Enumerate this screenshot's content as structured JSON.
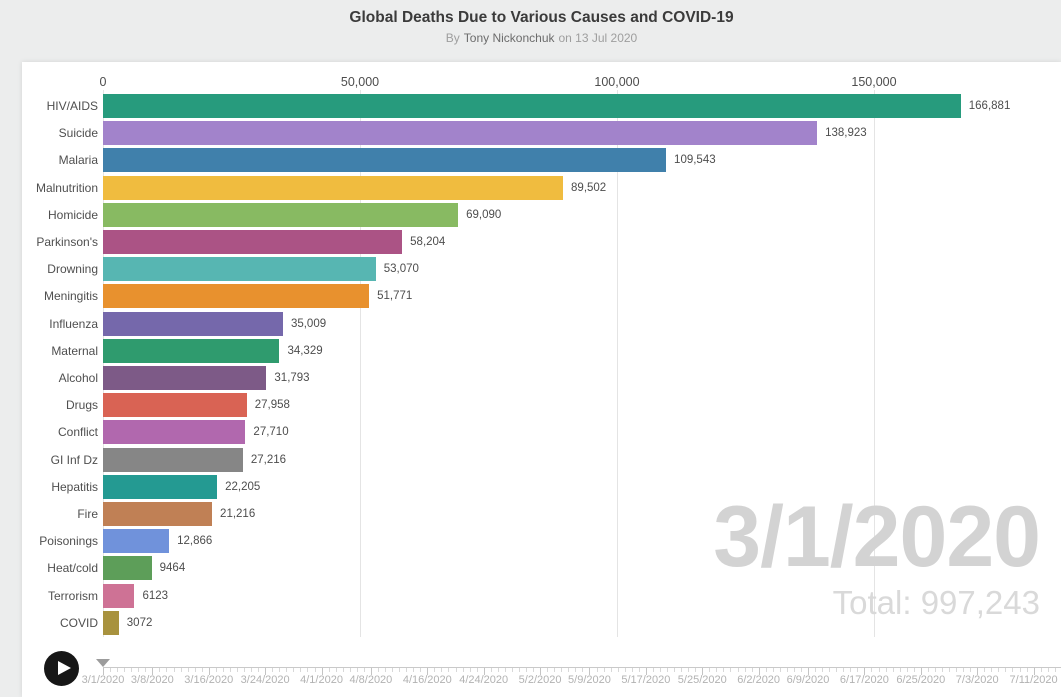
{
  "header": {
    "title": "Global Deaths Due to Various Causes and COVID-19",
    "byline_prefix": "By",
    "author": "Tony Nickonchuk",
    "byline_suffix": "on 13 Jul 2020"
  },
  "chart_data": {
    "type": "bar",
    "orientation": "horizontal",
    "title": "Global Deaths Due to Various Causes and COVID-19",
    "xlabel": "",
    "ylabel": "",
    "xlim": [
      0,
      186500
    ],
    "grid": true,
    "legend": false,
    "x_ticks": [
      0,
      50000,
      100000,
      150000
    ],
    "x_tick_labels": [
      "0",
      "50,000",
      "100,000",
      "150,000"
    ],
    "categories": [
      "HIV/AIDS",
      "Suicide",
      "Malaria",
      "Malnutrition",
      "Homicide",
      "Parkinson's",
      "Drowning",
      "Meningitis",
      "Influenza",
      "Maternal",
      "Alcohol",
      "Drugs",
      "Conflict",
      "GI Inf Dz",
      "Hepatitis",
      "Fire",
      "Poisonings",
      "Heat/cold",
      "Terrorism",
      "COVID"
    ],
    "values": [
      166881,
      138923,
      109543,
      89502,
      69090,
      58204,
      53070,
      51771,
      35009,
      34329,
      31793,
      27958,
      27710,
      27216,
      22205,
      21216,
      12866,
      9464,
      6123,
      3072
    ],
    "value_labels": [
      "166,881",
      "138,923",
      "109,543",
      "89,502",
      "69,090",
      "58,204",
      "53,070",
      "51,771",
      "35,009",
      "34,329",
      "31,793",
      "27,958",
      "27,710",
      "27,216",
      "22,205",
      "21,216",
      "12,866",
      "9464",
      "6123",
      "3072"
    ],
    "bar_colors": [
      "#279b7d",
      "#a283cb",
      "#4080ab",
      "#f0bc3f",
      "#88ba62",
      "#ab5385",
      "#57b6b2",
      "#e8912e",
      "#7568ab",
      "#2f9b6e",
      "#7d5a87",
      "#d96354",
      "#b168ae",
      "#868686",
      "#249a92",
      "#c08055",
      "#7092db",
      "#5d9e59",
      "#ce7295",
      "#a8923e"
    ]
  },
  "overlay": {
    "current_date": "3/1/2020",
    "total_text": "Total: 997,243"
  },
  "timeline": {
    "handle_day": 0,
    "labels": [
      {
        "text": "3/1/2020",
        "day": 0
      },
      {
        "text": "3/8/2020",
        "day": 7
      },
      {
        "text": "3/16/2020",
        "day": 15
      },
      {
        "text": "3/24/2020",
        "day": 23
      },
      {
        "text": "4/1/2020",
        "day": 31
      },
      {
        "text": "4/8/2020",
        "day": 38
      },
      {
        "text": "4/16/2020",
        "day": 46
      },
      {
        "text": "4/24/2020",
        "day": 54
      },
      {
        "text": "5/2/2020",
        "day": 62
      },
      {
        "text": "5/9/2020",
        "day": 69
      },
      {
        "text": "5/17/2020",
        "day": 77
      },
      {
        "text": "5/25/2020",
        "day": 85
      },
      {
        "text": "6/2/2020",
        "day": 93
      },
      {
        "text": "6/9/2020",
        "day": 100
      },
      {
        "text": "6/17/2020",
        "day": 108
      },
      {
        "text": "6/25/2020",
        "day": 116
      },
      {
        "text": "7/3/2020",
        "day": 124
      },
      {
        "text": "7/11/2020",
        "day": 132
      }
    ]
  }
}
